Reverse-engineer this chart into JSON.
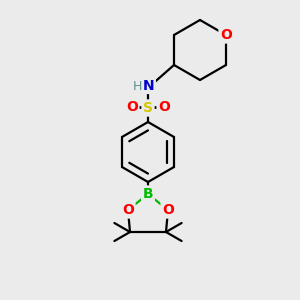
{
  "bg_color": "#ebebeb",
  "bond_color": "#000000",
  "bond_width": 1.6,
  "atom_colors": {
    "O": "#ff0000",
    "N": "#0000cd",
    "S": "#d4c800",
    "B": "#00bb00",
    "H": "#5a9090",
    "C": "#000000"
  },
  "font_size": 10,
  "figsize": [
    3.0,
    3.0
  ],
  "dpi": 100
}
